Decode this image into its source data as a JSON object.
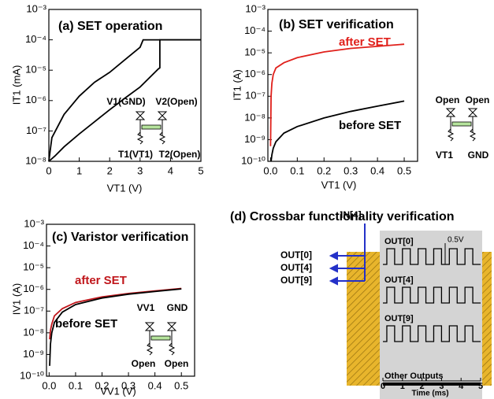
{
  "chart_data": [
    {
      "type": "line",
      "title": "(a) SET operation",
      "xlabel": "VT1 (V)",
      "ylabel": "IT1 (mA)",
      "log_y": true,
      "xlim": [
        0,
        5
      ],
      "ylim": [
        1e-08,
        0.001
      ],
      "xticks": [
        0,
        1,
        2,
        3,
        4,
        5
      ],
      "yticks": [
        {
          "value": 1e-08,
          "label": "10⁻⁸"
        },
        {
          "value": 1e-07,
          "label": "10⁻⁷"
        },
        {
          "value": 1e-06,
          "label": "10⁻⁶"
        },
        {
          "value": 1e-05,
          "label": "10⁻⁵"
        },
        {
          "value": 0.0001,
          "label": "10⁻⁴"
        },
        {
          "value": 0.001,
          "label": "10⁻³"
        }
      ],
      "annotations": [
        "V1(GND)",
        "V2(Open)",
        "T1(VT1)",
        "T2(Open)"
      ],
      "series": [
        {
          "color": "#000000",
          "x": [
            0,
            0.05,
            0.1,
            0.5,
            1,
            1.5,
            2,
            2.5,
            3,
            3.1,
            5
          ],
          "values": [
            1e-08,
            2.5e-08,
            6e-08,
            3.5e-07,
            1.4e-06,
            4e-06,
            8.5e-06,
            2.2e-05,
            5.7e-05,
            0.0001,
            0.0001
          ]
        },
        {
          "color": "#000000",
          "x": [
            0,
            0.2,
            0.5,
            1,
            1.5,
            2,
            2.5,
            3,
            3.6,
            3.65,
            3.65,
            5
          ],
          "values": [
            1e-08,
            1.5e-08,
            3e-08,
            8e-08,
            2e-07,
            5e-07,
            1.2e-06,
            2.8e-06,
            1.1e-05,
            1.2e-05,
            0.0001,
            0.0001
          ]
        }
      ]
    },
    {
      "type": "line",
      "title": "(b) SET verification",
      "xlabel": "VT1 (V)",
      "ylabel": "IT1 (A)",
      "log_y": true,
      "xlim": [
        -0.01,
        0.55
      ],
      "ylim": [
        1e-10,
        0.001
      ],
      "xticks": [
        {
          "value": 0,
          "label": "0.0"
        },
        0.1,
        0.2,
        0.3,
        0.4,
        0.5
      ],
      "yticks": [
        {
          "value": 1e-10,
          "label": "10⁻¹⁰"
        },
        {
          "value": 1e-09,
          "label": "10⁻⁹"
        },
        {
          "value": 1e-08,
          "label": "10⁻⁸"
        },
        {
          "value": 1e-07,
          "label": "10⁻⁷"
        },
        {
          "value": 1e-06,
          "label": "10⁻⁶"
        },
        {
          "value": 1e-05,
          "label": "10⁻⁵"
        },
        {
          "value": 0.0001,
          "label": "10⁻⁴"
        },
        {
          "value": 0.001,
          "label": "10⁻³"
        }
      ],
      "annotations": [
        "Open",
        "Open",
        "VT1",
        "GND"
      ],
      "series": [
        {
          "name": "after SET",
          "color": "#e0201b",
          "x": [
            0,
            0.002,
            0.005,
            0.01,
            0.02,
            0.05,
            0.1,
            0.2,
            0.3,
            0.4,
            0.5
          ],
          "values": [
            5e-10,
            1e-07,
            4e-07,
            1e-06,
            2e-06,
            3.5e-06,
            6e-06,
            1.1e-05,
            1.6e-05,
            2e-05,
            2.5e-05
          ]
        },
        {
          "name": "before SET",
          "color": "#000000",
          "x": [
            0.002,
            0.005,
            0.01,
            0.02,
            0.05,
            0.1,
            0.2,
            0.3,
            0.4,
            0.5
          ],
          "values": [
            1e-10,
            2e-10,
            4e-10,
            8e-10,
            2e-09,
            4e-09,
            1e-08,
            2e-08,
            3.5e-08,
            6e-08
          ]
        }
      ]
    },
    {
      "type": "line",
      "title": "(c) Varistor verification",
      "xlabel": "VV1 (V)",
      "ylabel": "IV1 (A)",
      "log_y": true,
      "xlim": [
        -0.01,
        0.55
      ],
      "ylim": [
        1e-10,
        0.001
      ],
      "xticks": [
        {
          "value": 0,
          "label": "0.0"
        },
        0.1,
        0.2,
        0.3,
        0.4,
        0.5
      ],
      "yticks": [
        {
          "value": 1e-10,
          "label": "10⁻¹⁰"
        },
        {
          "value": 1e-09,
          "label": "10⁻⁹"
        },
        {
          "value": 1e-08,
          "label": "10⁻⁸"
        },
        {
          "value": 1e-07,
          "label": "10⁻⁷"
        },
        {
          "value": 1e-06,
          "label": "10⁻⁶"
        },
        {
          "value": 1e-05,
          "label": "10⁻⁵"
        },
        {
          "value": 0.0001,
          "label": "10⁻⁴"
        },
        {
          "value": 0.001,
          "label": "10⁻³"
        }
      ],
      "annotations": [
        "VV1",
        "GND",
        "Open",
        "Open"
      ],
      "series": [
        {
          "name": "after SET",
          "color": "#c0161b",
          "x": [
            0.002,
            0.005,
            0.01,
            0.02,
            0.05,
            0.1,
            0.2,
            0.3,
            0.4,
            0.5
          ],
          "values": [
            5e-09,
            1.3e-08,
            2.5e-08,
            6e-08,
            1.3e-07,
            2.5e-07,
            4.5e-07,
            6.5e-07,
            8.5e-07,
            1.1e-06
          ]
        },
        {
          "name": "before SET",
          "color": "#000000",
          "x": [
            0.002,
            0.005,
            0.01,
            0.02,
            0.05,
            0.1,
            0.2,
            0.3,
            0.4,
            0.5
          ],
          "values": [
            3e-10,
            3e-09,
            1e-08,
            3e-08,
            9e-08,
            2e-07,
            4e-07,
            6e-07,
            8e-07,
            1.05e-06
          ]
        }
      ]
    },
    {
      "type": "waveform",
      "title": "(d) Crossbar functionality verification",
      "xlabel": "Time (ms)",
      "xlim": [
        0,
        5
      ],
      "ylim": [
        0,
        0.5
      ],
      "xticks": [
        0,
        1,
        2,
        3,
        4,
        5
      ],
      "annotations": [
        "IN[4]",
        "OUT[0]",
        "OUT[4]",
        "OUT[9]",
        "0.5V"
      ],
      "series": [
        {
          "name": "OUT[0]",
          "color": "#000000",
          "x": [
            0,
            0.2,
            0.2,
            0.6,
            0.6,
            1.0,
            1.0,
            1.4,
            1.4,
            1.8,
            1.8,
            2.2,
            2.2,
            2.6,
            2.6,
            3.0,
            3.0,
            3.4,
            3.4,
            3.8,
            3.8,
            4.2,
            4.2,
            4.6,
            4.6,
            5.0
          ],
          "values": [
            0,
            0,
            0.5,
            0.5,
            0,
            0,
            0.5,
            0.5,
            0,
            0,
            0.5,
            0.5,
            0,
            0,
            0.5,
            0.5,
            0,
            0,
            0.5,
            0.5,
            0,
            0,
            0.5,
            0.5,
            0,
            0
          ]
        },
        {
          "name": "OUT[4]",
          "color": "#000000",
          "x": [
            0,
            0.2,
            0.2,
            0.6,
            0.6,
            1.0,
            1.0,
            1.4,
            1.4,
            1.8,
            1.8,
            2.2,
            2.2,
            2.6,
            2.6,
            3.0,
            3.0,
            3.4,
            3.4,
            3.8,
            3.8,
            4.2,
            4.2,
            4.6,
            4.6,
            5.0
          ],
          "values": [
            0,
            0,
            0.5,
            0.5,
            0,
            0,
            0.5,
            0.5,
            0,
            0,
            0.5,
            0.5,
            0,
            0,
            0.5,
            0.5,
            0,
            0,
            0.5,
            0.5,
            0,
            0,
            0.5,
            0.5,
            0,
            0
          ]
        },
        {
          "name": "OUT[9]",
          "color": "#000000",
          "x": [
            0,
            0.2,
            0.2,
            0.6,
            0.6,
            1.0,
            1.0,
            1.4,
            1.4,
            1.8,
            1.8,
            2.2,
            2.2,
            2.6,
            2.6,
            3.0,
            3.0,
            3.4,
            3.4,
            3.8,
            3.8,
            4.2,
            4.2,
            4.6,
            4.6,
            5.0
          ],
          "values": [
            0,
            0,
            0.5,
            0.5,
            0,
            0,
            0.5,
            0.5,
            0,
            0,
            0.5,
            0.5,
            0,
            0,
            0.5,
            0.5,
            0,
            0,
            0.5,
            0.5,
            0,
            0,
            0.5,
            0.5,
            0,
            0
          ]
        },
        {
          "name": "Other Outputs",
          "color": "#000000",
          "x": [
            0,
            5
          ],
          "values": [
            0,
            0
          ]
        }
      ]
    }
  ]
}
